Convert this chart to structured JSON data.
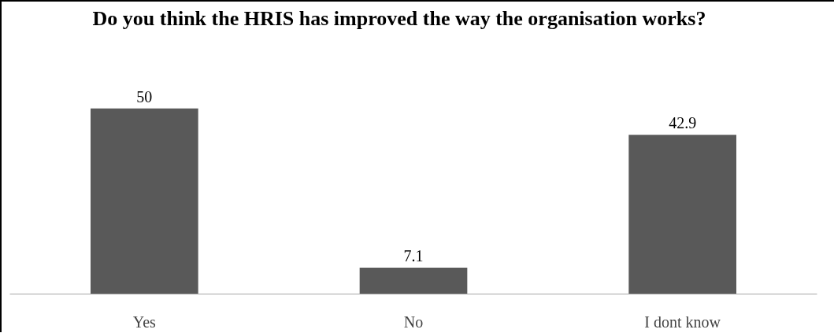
{
  "chart_data": {
    "type": "bar",
    "title": "Do you think the HRIS has improved the way the organisation works?",
    "categories": [
      "Yes",
      "No",
      "I dont know"
    ],
    "values": [
      50,
      7.1,
      42.9
    ],
    "color": "#595959",
    "data_labels": true,
    "tick_labels": "x",
    "grid": false
  }
}
